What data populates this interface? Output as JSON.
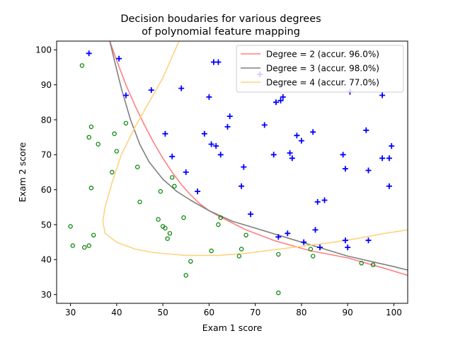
{
  "chart_data": {
    "type": "scatter",
    "title": "Decision boudaries for various degrees\nof polynomial feature mapping",
    "title_lines": [
      "Decision boudaries for various degrees",
      "of polynomial feature mapping"
    ],
    "xlabel": "Exam 1 score",
    "ylabel": "Exam 2 score",
    "xlim": [
      27,
      103
    ],
    "ylim": [
      27.5,
      102.5
    ],
    "xticks": [
      30,
      40,
      50,
      60,
      70,
      80,
      90,
      100
    ],
    "yticks": [
      30,
      40,
      50,
      60,
      70,
      80,
      90,
      100
    ],
    "grid": false,
    "legend_position": "top-right",
    "colors": {
      "admitted": "#0000ff",
      "not_admitted": "#008000",
      "degree2": "#ff8080",
      "degree3": "#808080",
      "degree4": "#ffd27f"
    },
    "markers": {
      "admitted": "plus",
      "not_admitted": "circle"
    },
    "series": [
      {
        "marker": "plus",
        "color": "#0000ff",
        "points": [
          [
            34,
            99
          ],
          [
            40.5,
            97.5
          ],
          [
            42,
            87
          ],
          [
            47.5,
            88.5
          ],
          [
            50.5,
            76
          ],
          [
            52,
            69.5
          ],
          [
            54,
            89
          ],
          [
            55,
            65
          ],
          [
            57.5,
            59.5
          ],
          [
            59,
            76
          ],
          [
            60,
            86.5
          ],
          [
            60.5,
            73
          ],
          [
            61,
            96.5
          ],
          [
            61.5,
            72.5
          ],
          [
            62,
            96.5
          ],
          [
            62.5,
            70
          ],
          [
            64,
            78
          ],
          [
            64.5,
            81
          ],
          [
            67,
            61
          ],
          [
            67.5,
            66.5
          ],
          [
            69,
            53
          ],
          [
            71,
            93
          ],
          [
            72,
            78.5
          ],
          [
            74,
            70
          ],
          [
            74.5,
            85
          ],
          [
            75,
            46.5
          ],
          [
            75.5,
            85.5
          ],
          [
            76,
            86.5
          ],
          [
            77,
            47.5
          ],
          [
            77.5,
            70.5
          ],
          [
            78,
            69
          ],
          [
            79,
            75.5
          ],
          [
            80,
            74
          ],
          [
            80.5,
            45
          ],
          [
            82.5,
            76.5
          ],
          [
            83,
            48.5
          ],
          [
            83.5,
            56.5
          ],
          [
            84,
            43.5
          ],
          [
            85,
            57
          ],
          [
            89,
            70
          ],
          [
            89.5,
            66
          ],
          [
            89.5,
            45.5
          ],
          [
            90,
            43.5
          ],
          [
            90.5,
            88
          ],
          [
            94,
            77
          ],
          [
            94.5,
            65.5
          ],
          [
            94.5,
            45.5
          ],
          [
            97.5,
            69
          ],
          [
            97.5,
            87
          ],
          [
            99,
            69
          ],
          [
            99,
            61
          ],
          [
            99.5,
            72.5
          ]
        ]
      },
      {
        "marker": "circle",
        "color": "#008000",
        "points": [
          [
            30,
            49.5
          ],
          [
            30.5,
            44
          ],
          [
            32.5,
            95.5
          ],
          [
            33,
            43.5
          ],
          [
            34,
            44
          ],
          [
            34,
            75
          ],
          [
            34.5,
            78
          ],
          [
            34.5,
            60.5
          ],
          [
            35,
            47
          ],
          [
            36,
            73
          ],
          [
            39,
            65
          ],
          [
            39.5,
            76
          ],
          [
            40,
            71
          ],
          [
            42,
            79
          ],
          [
            44.5,
            66.5
          ],
          [
            45,
            56.5
          ],
          [
            49,
            51.5
          ],
          [
            49.5,
            59.5
          ],
          [
            50,
            49.5
          ],
          [
            50.5,
            49
          ],
          [
            51,
            46
          ],
          [
            51.5,
            47.5
          ],
          [
            52,
            63.5
          ],
          [
            52.5,
            61
          ],
          [
            54.5,
            52
          ],
          [
            55,
            35.5
          ],
          [
            56,
            39.5
          ],
          [
            60.5,
            42.5
          ],
          [
            62,
            50
          ],
          [
            62.5,
            52
          ],
          [
            66.5,
            41
          ],
          [
            67,
            43
          ],
          [
            68,
            47
          ],
          [
            75,
            41.5
          ],
          [
            75,
            30.5
          ],
          [
            82,
            43
          ],
          [
            82.5,
            41
          ],
          [
            93,
            39
          ],
          [
            95.5,
            38.5
          ]
        ]
      }
    ],
    "boundaries": [
      {
        "name": "Degree = 2 (accur. 96.0%)",
        "color": "#ff8080",
        "points": [
          [
            38.5,
            102.5
          ],
          [
            40,
            97
          ],
          [
            42,
            90
          ],
          [
            44,
            84
          ],
          [
            46,
            78.5
          ],
          [
            48,
            73.5
          ],
          [
            50,
            69
          ],
          [
            52,
            65
          ],
          [
            54,
            61.5
          ],
          [
            56,
            58.5
          ],
          [
            58,
            56
          ],
          [
            60,
            54
          ],
          [
            62,
            52.5
          ],
          [
            65,
            50.5
          ],
          [
            68,
            48.5
          ],
          [
            70,
            47.5
          ],
          [
            74,
            45.5
          ],
          [
            78,
            44
          ],
          [
            82,
            42.5
          ],
          [
            86,
            41.5
          ],
          [
            90,
            40.5
          ],
          [
            94,
            39
          ],
          [
            98,
            37.5
          ],
          [
            103,
            35.5
          ]
        ]
      },
      {
        "name": "Degree = 3 (accur. 98.0%)",
        "color": "#808080",
        "points": [
          [
            38.5,
            102.5
          ],
          [
            39.5,
            97
          ],
          [
            41,
            89
          ],
          [
            43,
            80
          ],
          [
            45,
            73
          ],
          [
            47,
            68
          ],
          [
            50,
            63
          ],
          [
            53,
            59.5
          ],
          [
            56,
            57
          ],
          [
            60,
            54
          ],
          [
            65,
            51
          ],
          [
            70,
            49
          ],
          [
            75,
            47
          ],
          [
            80,
            45
          ],
          [
            85,
            43
          ],
          [
            90,
            41
          ],
          [
            95,
            39.5
          ],
          [
            100,
            38
          ],
          [
            103,
            37
          ]
        ]
      },
      {
        "name": "Degree = 4 (accur. 77.0%)",
        "color": "#ffd27f",
        "points": [
          [
            53.5,
            102.5
          ],
          [
            50,
            92
          ],
          [
            47,
            85
          ],
          [
            44,
            78
          ],
          [
            41,
            70
          ],
          [
            39,
            62
          ],
          [
            37.5,
            55
          ],
          [
            37,
            51
          ],
          [
            37.5,
            47.5
          ],
          [
            40,
            45
          ],
          [
            44,
            43
          ],
          [
            48,
            42
          ],
          [
            55,
            41.2
          ],
          [
            62,
            41.2
          ],
          [
            68,
            41.8
          ],
          [
            74,
            42.8
          ],
          [
            80,
            43.8
          ],
          [
            86,
            44.8
          ],
          [
            92,
            46
          ],
          [
            98,
            47.5
          ],
          [
            103,
            48.5
          ]
        ]
      }
    ],
    "legend": [
      {
        "label": "Degree = 2 (accur. 96.0%)",
        "color": "#ff8080"
      },
      {
        "label": "Degree = 3 (accur. 98.0%)",
        "color": "#808080"
      },
      {
        "label": "Degree = 4 (accur. 77.0%)",
        "color": "#ffd27f"
      }
    ]
  }
}
